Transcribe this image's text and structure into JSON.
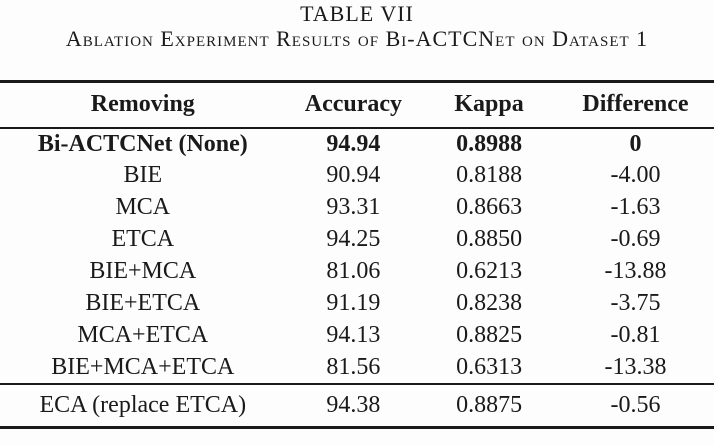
{
  "title": "TABLE VII",
  "caption": "Ablation Experiment Results of Bi-ACTCNet on Dataset 1",
  "table": {
    "columns": [
      "Removing",
      "Accuracy",
      "Kappa",
      "Difference"
    ],
    "rows": [
      [
        "Bi-ACTCNet (None)",
        "94.94",
        "0.8988",
        "0"
      ],
      [
        "BIE",
        "90.94",
        "0.8188",
        "-4.00"
      ],
      [
        "MCA",
        "93.31",
        "0.8663",
        "-1.63"
      ],
      [
        "ETCA",
        "94.25",
        "0.8850",
        "-0.69"
      ],
      [
        "BIE+MCA",
        "81.06",
        "0.6213",
        "-13.88"
      ],
      [
        "BIE+ETCA",
        "91.19",
        "0.8238",
        "-3.75"
      ],
      [
        "MCA+ETCA",
        "94.13",
        "0.8825",
        "-0.81"
      ],
      [
        "BIE+MCA+ETCA",
        "81.56",
        "0.6313",
        "-13.38"
      ]
    ],
    "footer_rows": [
      [
        "ECA (replace ETCA)",
        "94.38",
        "0.8875",
        "-0.56"
      ]
    ]
  },
  "colors": {
    "text": "#1a1a1a",
    "rule": "#1a1a1a",
    "background": "#fdfdfd"
  }
}
